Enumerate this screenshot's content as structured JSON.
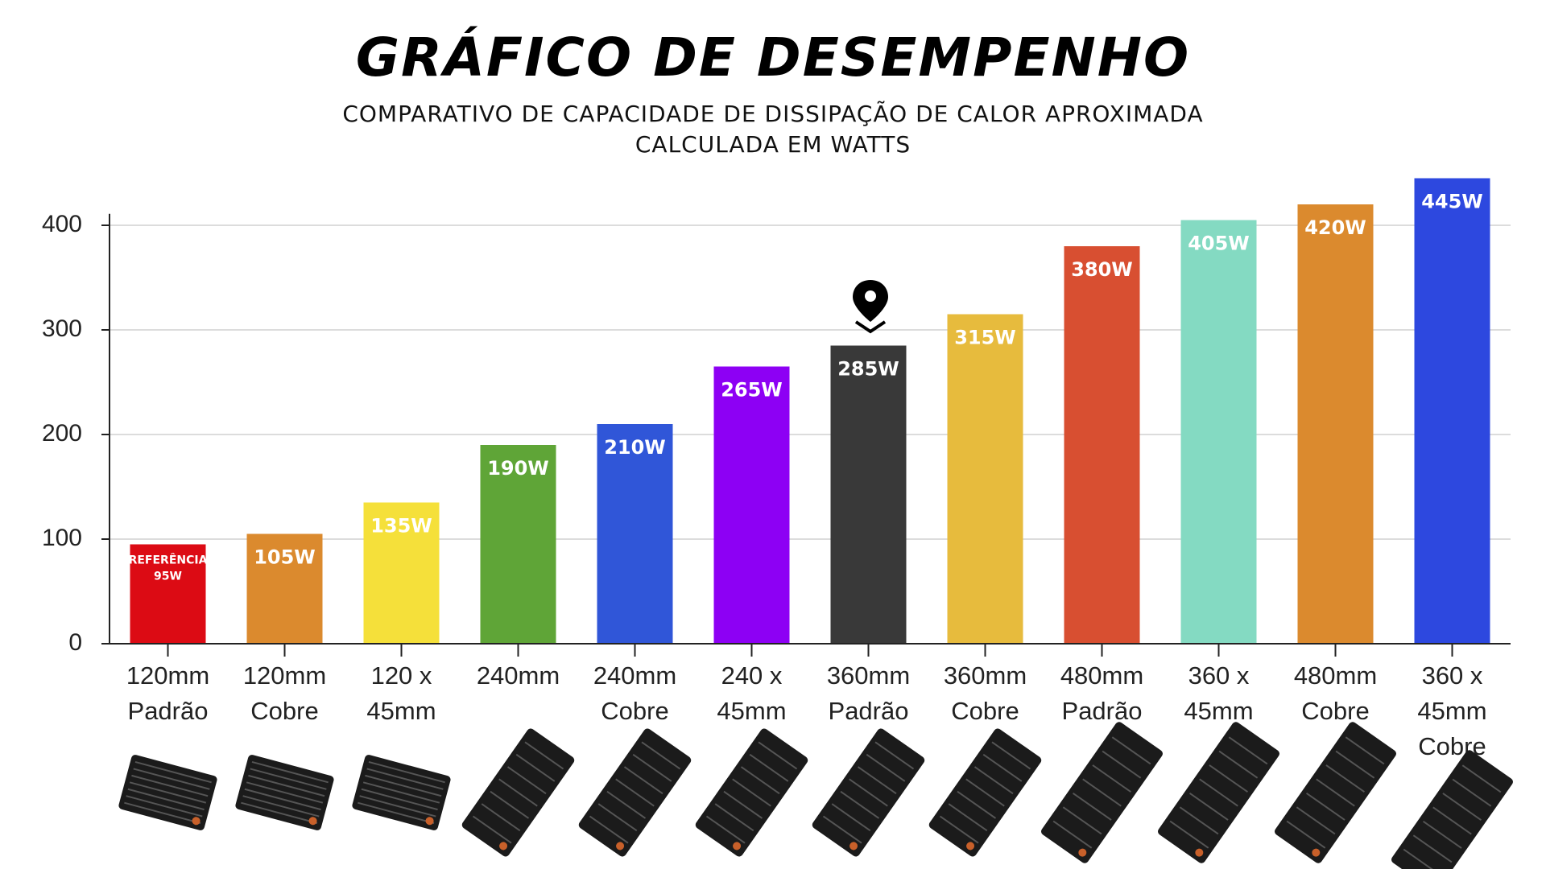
{
  "chart_data": {
    "type": "bar",
    "title": "GRÁFICO DE DESEMPENHO",
    "subtitle": [
      "COMPARATIVO DE CAPACIDADE DE DISSIPAÇÃO DE CALOR APROXIMADA",
      "CALCULADA EM WATTS"
    ],
    "categories": [
      [
        "120mm",
        "Padrão"
      ],
      [
        "120mm",
        "Cobre"
      ],
      [
        "120 x",
        "45mm"
      ],
      [
        "240mm"
      ],
      [
        "240mm",
        "Cobre"
      ],
      [
        "240 x",
        "45mm"
      ],
      [
        "360mm",
        "Padrão"
      ],
      [
        "360mm",
        "Cobre"
      ],
      [
        "480mm",
        "Padrão"
      ],
      [
        "360 x",
        "45mm"
      ],
      [
        "480mm",
        "Cobre"
      ],
      [
        "360 x",
        "45mm",
        "Cobre"
      ]
    ],
    "values": [
      95,
      105,
      135,
      190,
      210,
      265,
      285,
      315,
      380,
      405,
      420,
      445
    ],
    "value_labels": [
      "95W",
      "105W",
      "135W",
      "190W",
      "210W",
      "265W",
      "285W",
      "315W",
      "380W",
      "405W",
      "420W",
      "445W"
    ],
    "reference_label": "REFERÊNCIA",
    "colors": [
      "#dc0b14",
      "#db8a2e",
      "#f5e03a",
      "#5fa537",
      "#3056d8",
      "#8d00f4",
      "#393939",
      "#e7bb3d",
      "#d84f31",
      "#84dac2",
      "#db8a2e",
      "#2d48df"
    ],
    "ylim": [
      0,
      411
    ],
    "yticks": [
      0,
      100,
      200,
      300,
      400
    ],
    "grid": true
  }
}
